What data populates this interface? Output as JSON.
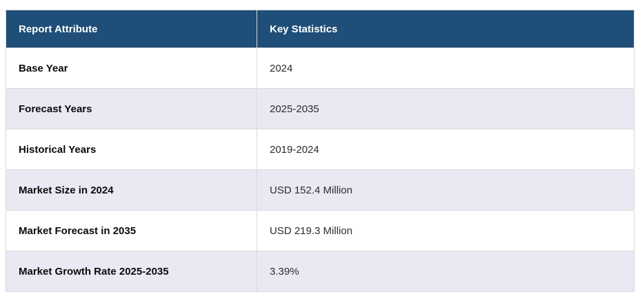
{
  "table": {
    "columns": {
      "attribute_header": "Report Attribute",
      "statistics_header": "Key Statistics"
    },
    "rows": [
      {
        "attribute": "Base Year",
        "value": "2024"
      },
      {
        "attribute": "Forecast Years",
        "value": "2025-2035"
      },
      {
        "attribute": "Historical Years",
        "value": "2019-2024"
      },
      {
        "attribute": "Market Size in 2024",
        "value": "USD 152.4 Million"
      },
      {
        "attribute": "Market Forecast in 2035",
        "value": "USD 219.3 Million"
      },
      {
        "attribute": "Market Growth Rate 2025-2035",
        "value": "3.39%"
      }
    ],
    "colors": {
      "header_bg": "#1f4e79",
      "header_text": "#ffffff",
      "row_alt_bg": "#e9e9f4",
      "row_bg": "#ffffff",
      "border": "#d9d9d9"
    }
  }
}
